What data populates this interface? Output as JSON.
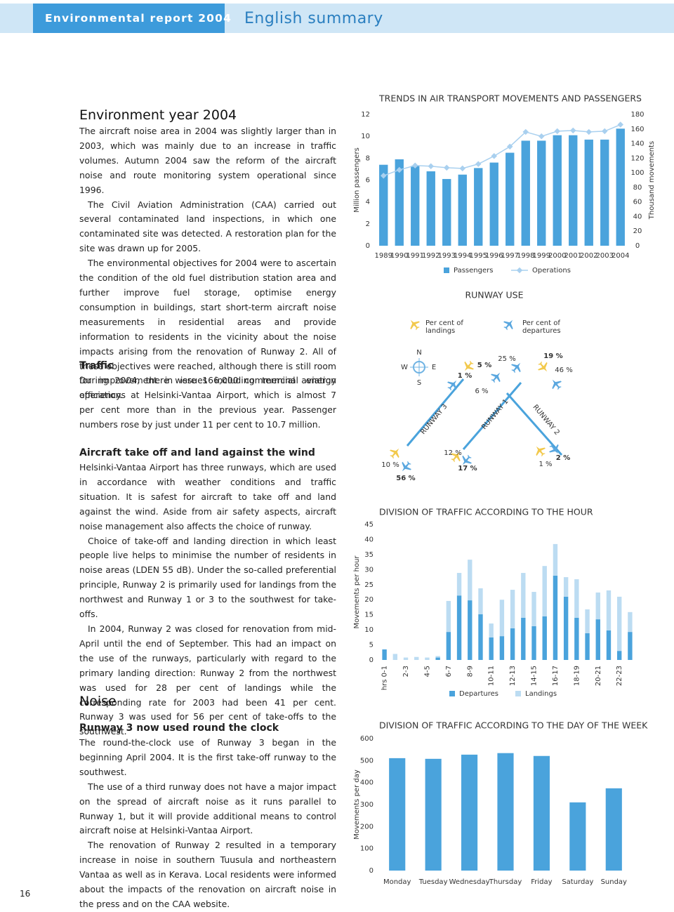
{
  "header": {
    "title": "Environmental report 2004",
    "subtitle": "English summary"
  },
  "page_number": "16",
  "sections": [
    {
      "heading": "Environment year 2004",
      "paragraphs": [
        "The aircraft noise area in 2004 was slightly larger than in 2003, which was mainly due to an increase in traffic volumes. Autumn 2004 saw the reform of the aircraft noise and route monitoring system operational since 1996.",
        "The Civil Aviation Administration (CAA) carried out several contaminated land inspections, in which one contaminated site was detected. A restoration plan for the site was drawn up for 2005.",
        "The environmental objectives for 2004 were to ascertain the condition of the old fuel distribution station area and further improve fuel storage, optimise energy consumption in buildings, start short-term aircraft noise measurements in residential areas and provide information to residents in the vicinity about the noise impacts arising from the renovation of Runway 2. All of these objectives were reached, although there is still room for improvement in issues including terminal energy efficiency."
      ]
    },
    {
      "heading": "Traffic",
      "paragraphs": [
        "During 2004, there were 166,000 commercial aviation operations at Helsinki-Vantaa Airport, which is almost 7 per cent more than in the previous year. Passenger numbers rose by just under 11 per cent to 10.7 million."
      ]
    },
    {
      "heading": "Aircraft take off and land against the wind",
      "paragraphs": [
        "Helsinki-Vantaa Airport has three runways, which are used in accordance with weather conditions and traffic situation. It is safest for aircraft to take off and land against the wind. Aside from air safety aspects, aircraft noise management also affects the choice of runway.",
        "Choice of take-off and landing direction in which least people live helps to minimise the number of residents in noise areas (LDEN 55 dB). Under the so-called preferential principle, Runway 2 is primarily used for landings from the northwest and Runway 1 or 3 to the southwest for take-offs.",
        "In 2004, Runway 2 was closed for renovation from mid-April until the end of September. This had an impact on the use of the runways, particularly with regard to the primary landing direction: Runway 2 from the northwest was used for 28 per cent of landings while the corresponding rate for 2003 had been 41 per cent. Runway 3 was used for 56 per cent of take-offs to the southwest."
      ]
    },
    {
      "heading": "Noise",
      "subheading": "Runway 3 now used round the clock",
      "paragraphs": [
        "The round-the-clock use of Runway 3 began in the beginning April 2004. It is the first take-off runway to the southwest.",
        "The use of a third runway does not have a major impact on the spread of aircraft noise as it runs parallel to Runway 1, but it will provide additional means to control aircraft noise at Helsinki-Vantaa Airport.",
        "The renovation of Runway 2 resulted in a temporary increase in noise in southern Tuusula and northeastern Vantaa as well as in Kerava. Local residents were informed about the impacts of the renovation on aircraft noise in the press and on the CAA website."
      ]
    }
  ],
  "runway_use": {
    "title": "RUNWAY USE",
    "legend_landings": "Per cent of landings",
    "legend_departures": "Per cent of departures",
    "compass": [
      "N",
      "W",
      "E",
      "S"
    ],
    "runways": [
      "RUNWAY 3",
      "RUNWAY 1",
      "RUNWAY 2"
    ],
    "labels": [
      "1 %",
      "5 %",
      "25 %",
      "19 %",
      "46 %",
      "6 %",
      "10 %",
      "56 %",
      "12 %",
      "17 %",
      "1 %",
      "2 %"
    ]
  },
  "chart_data": [
    {
      "type": "bar",
      "title": "TRENDS IN AIR TRANSPORT MOVEMENTS AND PASSENGERS",
      "y_label": "Million passengers",
      "y2_label": "Thousand movements",
      "categories": [
        "1989",
        "1990",
        "1991",
        "1992",
        "1993",
        "1994",
        "1995",
        "1996",
        "1997",
        "1998",
        "1999",
        "2000",
        "2001",
        "2002",
        "2003",
        "2004"
      ],
      "series": [
        {
          "name": "Passengers",
          "color": "#4aa3dc",
          "values": [
            7.4,
            7.9,
            7.3,
            6.8,
            6.1,
            6.5,
            7.1,
            7.6,
            8.5,
            9.6,
            9.6,
            10.1,
            10.1,
            9.7,
            9.7,
            10.7
          ]
        },
        {
          "name": "Operations",
          "color": "#a9d0ef",
          "type": "line",
          "axis": "y2",
          "values": [
            96,
            104,
            110,
            109,
            107,
            106,
            112,
            123,
            136,
            156,
            150,
            157,
            158,
            156,
            157,
            166
          ]
        }
      ],
      "ylim": [
        0,
        12
      ],
      "yticks": [
        0,
        2,
        4,
        6,
        8,
        10,
        12
      ],
      "y2lim": [
        0,
        180
      ],
      "y2ticks": [
        0,
        20,
        40,
        60,
        80,
        100,
        120,
        140,
        160,
        180
      ]
    },
    {
      "type": "stacked_bar",
      "title": "DIVISION OF TRAFFIC ACCORDING TO THE HOUR",
      "y_label": "Movements per hour",
      "categories": [
        "hrs 0-1",
        null,
        "2-3",
        null,
        "4-5",
        null,
        "6-7",
        null,
        "8-9",
        null,
        "10-11",
        null,
        "12-13",
        null,
        "14-15",
        null,
        "16-17",
        null,
        "18-19",
        null,
        "20-21",
        null,
        "22-23",
        null
      ],
      "series": [
        {
          "name": "Departures",
          "color": "#4aa3dc",
          "values": [
            3.5,
            0,
            0,
            0,
            0,
            0.8,
            9.3,
            21.4,
            19.8,
            15.2,
            7.5,
            7.9,
            10.5,
            14,
            11.2,
            14.5,
            28,
            21,
            14,
            8.9,
            13.5,
            9.8,
            3,
            9.3
          ]
        },
        {
          "name": "Landings",
          "color": "#bcdcf2",
          "values": [
            0,
            2,
            0.8,
            1,
            0.8,
            0.5,
            10.3,
            7.5,
            13.5,
            8.6,
            4.6,
            12.1,
            12.8,
            14.9,
            11.4,
            16.7,
            10.5,
            6.5,
            12.8,
            7.9,
            8.9,
            13.3,
            18,
            6.6
          ]
        }
      ],
      "ylim": [
        0,
        45
      ],
      "yticks": [
        0,
        5,
        10,
        15,
        20,
        25,
        30,
        35,
        40,
        45
      ]
    },
    {
      "type": "bar",
      "title": "DIVISION OF TRAFFIC ACCORDING TO THE DAY OF THE WEEK",
      "y_label": "Movements per day",
      "categories": [
        "Monday",
        "Tuesday",
        "Wednesday",
        "Thursday",
        "Friday",
        "Saturday",
        "Sunday"
      ],
      "series": [
        {
          "color": "#4aa3dc",
          "values": [
            511,
            508,
            527,
            534,
            521,
            310,
            374
          ]
        }
      ],
      "ylim": [
        0,
        600
      ],
      "yticks": [
        0,
        100,
        200,
        300,
        400,
        500,
        600
      ]
    }
  ]
}
